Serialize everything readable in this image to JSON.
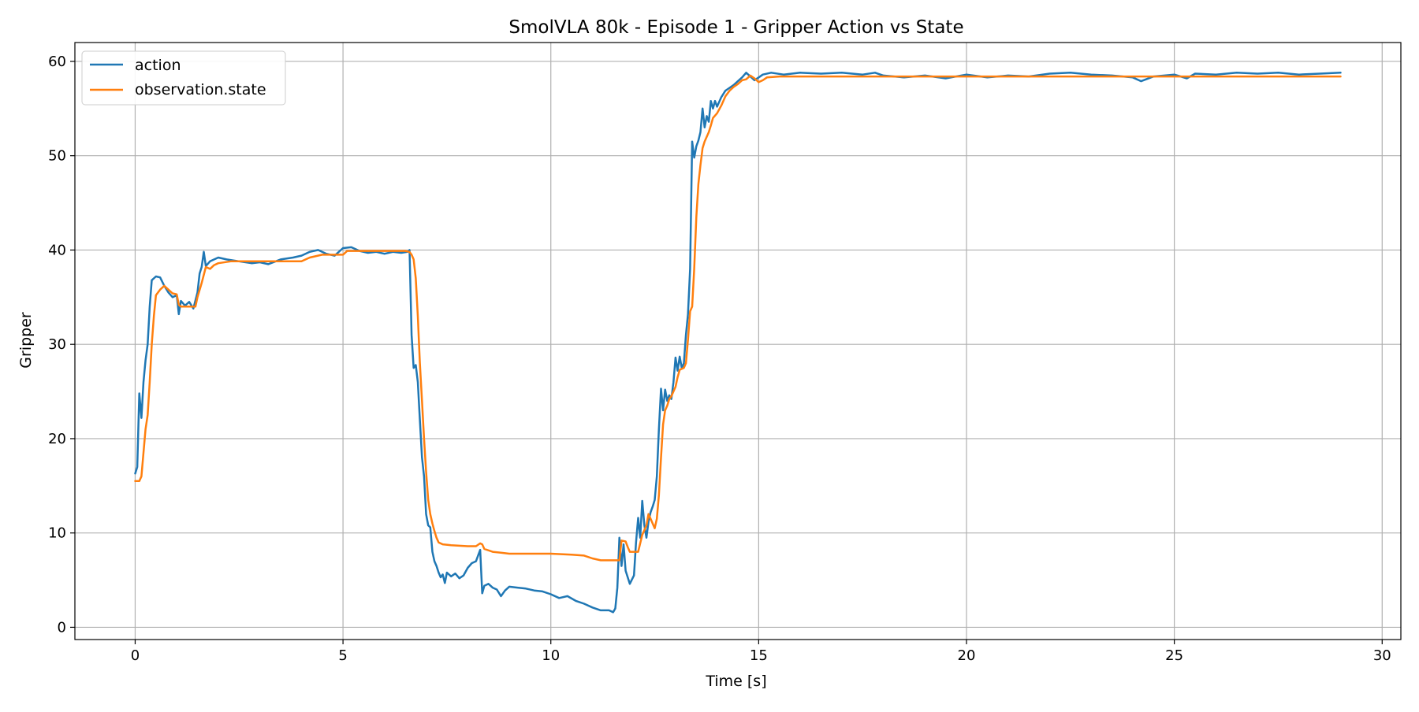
{
  "chart_data": {
    "type": "line",
    "title": "SmolVLA 80k - Episode 1 - Gripper Action vs State",
    "xlabel": "Time [s]",
    "ylabel": "Gripper",
    "xlim": [
      -1.45,
      30.45
    ],
    "ylim": [
      -1.3,
      62.0
    ],
    "xticks": [
      0,
      5,
      10,
      15,
      20,
      25,
      30
    ],
    "yticks": [
      0,
      10,
      20,
      30,
      40,
      50,
      60
    ],
    "grid": true,
    "legend_position": "top-left",
    "series": [
      {
        "name": "action",
        "color": "#1f77b4",
        "points": [
          [
            0.0,
            16.3
          ],
          [
            0.05,
            17.0
          ],
          [
            0.1,
            24.8
          ],
          [
            0.15,
            22.2
          ],
          [
            0.2,
            26.0
          ],
          [
            0.25,
            28.3
          ],
          [
            0.3,
            30.0
          ],
          [
            0.35,
            34.0
          ],
          [
            0.4,
            36.8
          ],
          [
            0.5,
            37.2
          ],
          [
            0.6,
            37.1
          ],
          [
            0.7,
            36.2
          ],
          [
            0.8,
            35.5
          ],
          [
            0.9,
            35.0
          ],
          [
            1.0,
            35.2
          ],
          [
            1.05,
            33.2
          ],
          [
            1.1,
            34.6
          ],
          [
            1.2,
            34.1
          ],
          [
            1.3,
            34.5
          ],
          [
            1.4,
            33.8
          ],
          [
            1.5,
            35.5
          ],
          [
            1.55,
            37.5
          ],
          [
            1.6,
            38.2
          ],
          [
            1.65,
            39.8
          ],
          [
            1.7,
            38.3
          ],
          [
            1.8,
            38.8
          ],
          [
            1.9,
            39.0
          ],
          [
            2.0,
            39.2
          ],
          [
            2.2,
            39.0
          ],
          [
            2.5,
            38.8
          ],
          [
            2.8,
            38.6
          ],
          [
            3.0,
            38.7
          ],
          [
            3.2,
            38.5
          ],
          [
            3.5,
            39.0
          ],
          [
            3.8,
            39.2
          ],
          [
            4.0,
            39.4
          ],
          [
            4.2,
            39.8
          ],
          [
            4.4,
            40.0
          ],
          [
            4.6,
            39.6
          ],
          [
            4.8,
            39.4
          ],
          [
            5.0,
            40.2
          ],
          [
            5.2,
            40.3
          ],
          [
            5.4,
            39.9
          ],
          [
            5.6,
            39.7
          ],
          [
            5.8,
            39.8
          ],
          [
            6.0,
            39.6
          ],
          [
            6.2,
            39.8
          ],
          [
            6.4,
            39.7
          ],
          [
            6.55,
            39.8
          ],
          [
            6.6,
            40.0
          ],
          [
            6.65,
            31.0
          ],
          [
            6.7,
            27.5
          ],
          [
            6.75,
            27.8
          ],
          [
            6.8,
            26.0
          ],
          [
            6.85,
            22.0
          ],
          [
            6.9,
            18.0
          ],
          [
            6.95,
            16.0
          ],
          [
            7.0,
            12.0
          ],
          [
            7.05,
            10.8
          ],
          [
            7.1,
            10.6
          ],
          [
            7.15,
            8.0
          ],
          [
            7.2,
            7.0
          ],
          [
            7.25,
            6.5
          ],
          [
            7.3,
            5.8
          ],
          [
            7.35,
            5.3
          ],
          [
            7.4,
            5.6
          ],
          [
            7.45,
            4.7
          ],
          [
            7.5,
            5.8
          ],
          [
            7.6,
            5.4
          ],
          [
            7.7,
            5.7
          ],
          [
            7.8,
            5.2
          ],
          [
            7.9,
            5.5
          ],
          [
            8.0,
            6.3
          ],
          [
            8.1,
            6.8
          ],
          [
            8.2,
            7.0
          ],
          [
            8.3,
            8.2
          ],
          [
            8.35,
            3.6
          ],
          [
            8.4,
            4.4
          ],
          [
            8.5,
            4.6
          ],
          [
            8.6,
            4.2
          ],
          [
            8.7,
            4.0
          ],
          [
            8.8,
            3.3
          ],
          [
            8.9,
            3.9
          ],
          [
            9.0,
            4.3
          ],
          [
            9.2,
            4.2
          ],
          [
            9.4,
            4.1
          ],
          [
            9.6,
            3.9
          ],
          [
            9.8,
            3.8
          ],
          [
            10.0,
            3.5
          ],
          [
            10.2,
            3.1
          ],
          [
            10.4,
            3.3
          ],
          [
            10.6,
            2.8
          ],
          [
            10.8,
            2.5
          ],
          [
            11.0,
            2.1
          ],
          [
            11.2,
            1.8
          ],
          [
            11.4,
            1.8
          ],
          [
            11.5,
            1.6
          ],
          [
            11.55,
            2.0
          ],
          [
            11.6,
            4.2
          ],
          [
            11.65,
            9.5
          ],
          [
            11.7,
            6.5
          ],
          [
            11.75,
            8.8
          ],
          [
            11.8,
            6.0
          ],
          [
            11.9,
            4.6
          ],
          [
            12.0,
            5.5
          ],
          [
            12.05,
            9.0
          ],
          [
            12.1,
            11.6
          ],
          [
            12.15,
            9.5
          ],
          [
            12.2,
            13.4
          ],
          [
            12.25,
            10.8
          ],
          [
            12.3,
            9.5
          ],
          [
            12.35,
            11.2
          ],
          [
            12.4,
            12.2
          ],
          [
            12.45,
            12.8
          ],
          [
            12.5,
            13.5
          ],
          [
            12.55,
            16.0
          ],
          [
            12.6,
            21.0
          ],
          [
            12.65,
            25.3
          ],
          [
            12.7,
            23.0
          ],
          [
            12.75,
            25.2
          ],
          [
            12.8,
            24.0
          ],
          [
            12.85,
            24.6
          ],
          [
            12.9,
            24.2
          ],
          [
            12.95,
            26.0
          ],
          [
            13.0,
            28.6
          ],
          [
            13.05,
            27.2
          ],
          [
            13.1,
            28.7
          ],
          [
            13.15,
            27.5
          ],
          [
            13.2,
            28.0
          ],
          [
            13.25,
            31.0
          ],
          [
            13.3,
            33.2
          ],
          [
            13.35,
            38.0
          ],
          [
            13.4,
            51.5
          ],
          [
            13.45,
            49.8
          ],
          [
            13.5,
            51.0
          ],
          [
            13.55,
            51.6
          ],
          [
            13.6,
            52.5
          ],
          [
            13.65,
            55.0
          ],
          [
            13.7,
            53.0
          ],
          [
            13.75,
            54.2
          ],
          [
            13.8,
            53.6
          ],
          [
            13.85,
            55.8
          ],
          [
            13.9,
            55.0
          ],
          [
            13.95,
            55.8
          ],
          [
            14.0,
            55.2
          ],
          [
            14.1,
            56.2
          ],
          [
            14.2,
            56.9
          ],
          [
            14.3,
            57.2
          ],
          [
            14.4,
            57.5
          ],
          [
            14.5,
            57.9
          ],
          [
            14.6,
            58.3
          ],
          [
            14.7,
            58.8
          ],
          [
            14.8,
            58.4
          ],
          [
            14.9,
            58.0
          ],
          [
            15.0,
            58.3
          ],
          [
            15.1,
            58.6
          ],
          [
            15.3,
            58.8
          ],
          [
            15.6,
            58.6
          ],
          [
            16.0,
            58.8
          ],
          [
            16.5,
            58.7
          ],
          [
            17.0,
            58.8
          ],
          [
            17.5,
            58.6
          ],
          [
            17.8,
            58.8
          ],
          [
            18.0,
            58.5
          ],
          [
            18.5,
            58.3
          ],
          [
            19.0,
            58.5
          ],
          [
            19.5,
            58.2
          ],
          [
            20.0,
            58.6
          ],
          [
            20.5,
            58.3
          ],
          [
            21.0,
            58.5
          ],
          [
            21.5,
            58.4
          ],
          [
            22.0,
            58.7
          ],
          [
            22.5,
            58.8
          ],
          [
            23.0,
            58.6
          ],
          [
            23.5,
            58.5
          ],
          [
            24.0,
            58.3
          ],
          [
            24.2,
            57.9
          ],
          [
            24.5,
            58.4
          ],
          [
            25.0,
            58.6
          ],
          [
            25.3,
            58.2
          ],
          [
            25.5,
            58.7
          ],
          [
            26.0,
            58.6
          ],
          [
            26.5,
            58.8
          ],
          [
            27.0,
            58.7
          ],
          [
            27.5,
            58.8
          ],
          [
            28.0,
            58.6
          ],
          [
            28.5,
            58.7
          ],
          [
            29.0,
            58.8
          ]
        ]
      },
      {
        "name": "observation.state",
        "color": "#ff7f0e",
        "points": [
          [
            0.0,
            15.5
          ],
          [
            0.1,
            15.5
          ],
          [
            0.15,
            16.0
          ],
          [
            0.2,
            18.5
          ],
          [
            0.25,
            21.0
          ],
          [
            0.3,
            22.5
          ],
          [
            0.35,
            26.0
          ],
          [
            0.4,
            30.0
          ],
          [
            0.45,
            33.0
          ],
          [
            0.5,
            35.2
          ],
          [
            0.6,
            35.8
          ],
          [
            0.7,
            36.2
          ],
          [
            0.8,
            35.8
          ],
          [
            0.9,
            35.4
          ],
          [
            1.0,
            35.3
          ],
          [
            1.05,
            34.2
          ],
          [
            1.1,
            34.0
          ],
          [
            1.3,
            34.0
          ],
          [
            1.45,
            34.0
          ],
          [
            1.5,
            35.0
          ],
          [
            1.6,
            36.5
          ],
          [
            1.7,
            38.2
          ],
          [
            1.8,
            38.0
          ],
          [
            1.9,
            38.4
          ],
          [
            2.0,
            38.6
          ],
          [
            2.3,
            38.8
          ],
          [
            2.8,
            38.8
          ],
          [
            3.5,
            38.8
          ],
          [
            4.0,
            38.8
          ],
          [
            4.2,
            39.2
          ],
          [
            4.5,
            39.5
          ],
          [
            5.0,
            39.5
          ],
          [
            5.1,
            39.9
          ],
          [
            5.5,
            39.9
          ],
          [
            6.0,
            39.9
          ],
          [
            6.5,
            39.9
          ],
          [
            6.6,
            39.8
          ],
          [
            6.65,
            39.5
          ],
          [
            6.7,
            39.0
          ],
          [
            6.75,
            37.0
          ],
          [
            6.8,
            33.0
          ],
          [
            6.85,
            28.0
          ],
          [
            6.9,
            24.0
          ],
          [
            6.95,
            20.0
          ],
          [
            7.0,
            16.5
          ],
          [
            7.05,
            13.5
          ],
          [
            7.1,
            12.0
          ],
          [
            7.15,
            11.0
          ],
          [
            7.2,
            10.2
          ],
          [
            7.25,
            9.5
          ],
          [
            7.3,
            9.0
          ],
          [
            7.4,
            8.8
          ],
          [
            7.6,
            8.7
          ],
          [
            8.0,
            8.6
          ],
          [
            8.2,
            8.6
          ],
          [
            8.3,
            8.9
          ],
          [
            8.35,
            8.8
          ],
          [
            8.4,
            8.3
          ],
          [
            8.6,
            8.0
          ],
          [
            8.8,
            7.9
          ],
          [
            9.0,
            7.8
          ],
          [
            9.5,
            7.8
          ],
          [
            10.0,
            7.8
          ],
          [
            10.5,
            7.7
          ],
          [
            10.8,
            7.6
          ],
          [
            11.0,
            7.3
          ],
          [
            11.2,
            7.1
          ],
          [
            11.5,
            7.1
          ],
          [
            11.65,
            7.1
          ],
          [
            11.7,
            9.2
          ],
          [
            11.8,
            9.1
          ],
          [
            11.85,
            8.5
          ],
          [
            11.9,
            8.0
          ],
          [
            12.1,
            8.0
          ],
          [
            12.2,
            9.8
          ],
          [
            12.3,
            10.8
          ],
          [
            12.35,
            12.0
          ],
          [
            12.4,
            11.5
          ],
          [
            12.5,
            10.5
          ],
          [
            12.55,
            11.5
          ],
          [
            12.6,
            14.0
          ],
          [
            12.65,
            18.0
          ],
          [
            12.7,
            21.5
          ],
          [
            12.75,
            23.0
          ],
          [
            12.8,
            23.5
          ],
          [
            12.85,
            24.2
          ],
          [
            12.9,
            24.5
          ],
          [
            13.0,
            25.5
          ],
          [
            13.05,
            26.5
          ],
          [
            13.1,
            27.3
          ],
          [
            13.2,
            27.5
          ],
          [
            13.25,
            28.0
          ],
          [
            13.3,
            30.5
          ],
          [
            13.35,
            33.5
          ],
          [
            13.4,
            34.0
          ],
          [
            13.45,
            38.0
          ],
          [
            13.5,
            43.5
          ],
          [
            13.55,
            47.0
          ],
          [
            13.6,
            49.0
          ],
          [
            13.65,
            50.8
          ],
          [
            13.7,
            51.5
          ],
          [
            13.8,
            52.5
          ],
          [
            13.85,
            53.2
          ],
          [
            13.9,
            54.0
          ],
          [
            14.0,
            54.5
          ],
          [
            14.1,
            55.3
          ],
          [
            14.2,
            56.3
          ],
          [
            14.3,
            56.9
          ],
          [
            14.4,
            57.3
          ],
          [
            14.5,
            57.6
          ],
          [
            14.6,
            58.0
          ],
          [
            14.7,
            58.1
          ],
          [
            14.8,
            58.5
          ],
          [
            14.9,
            58.2
          ],
          [
            15.0,
            57.8
          ],
          [
            15.1,
            58.0
          ],
          [
            15.2,
            58.3
          ],
          [
            15.5,
            58.4
          ],
          [
            16.0,
            58.4
          ],
          [
            17.0,
            58.4
          ],
          [
            18.0,
            58.4
          ],
          [
            19.0,
            58.4
          ],
          [
            20.0,
            58.4
          ],
          [
            21.0,
            58.4
          ],
          [
            22.0,
            58.4
          ],
          [
            23.0,
            58.4
          ],
          [
            24.0,
            58.4
          ],
          [
            25.0,
            58.4
          ],
          [
            26.0,
            58.4
          ],
          [
            27.0,
            58.4
          ],
          [
            28.0,
            58.4
          ],
          [
            29.0,
            58.4
          ]
        ]
      }
    ]
  }
}
